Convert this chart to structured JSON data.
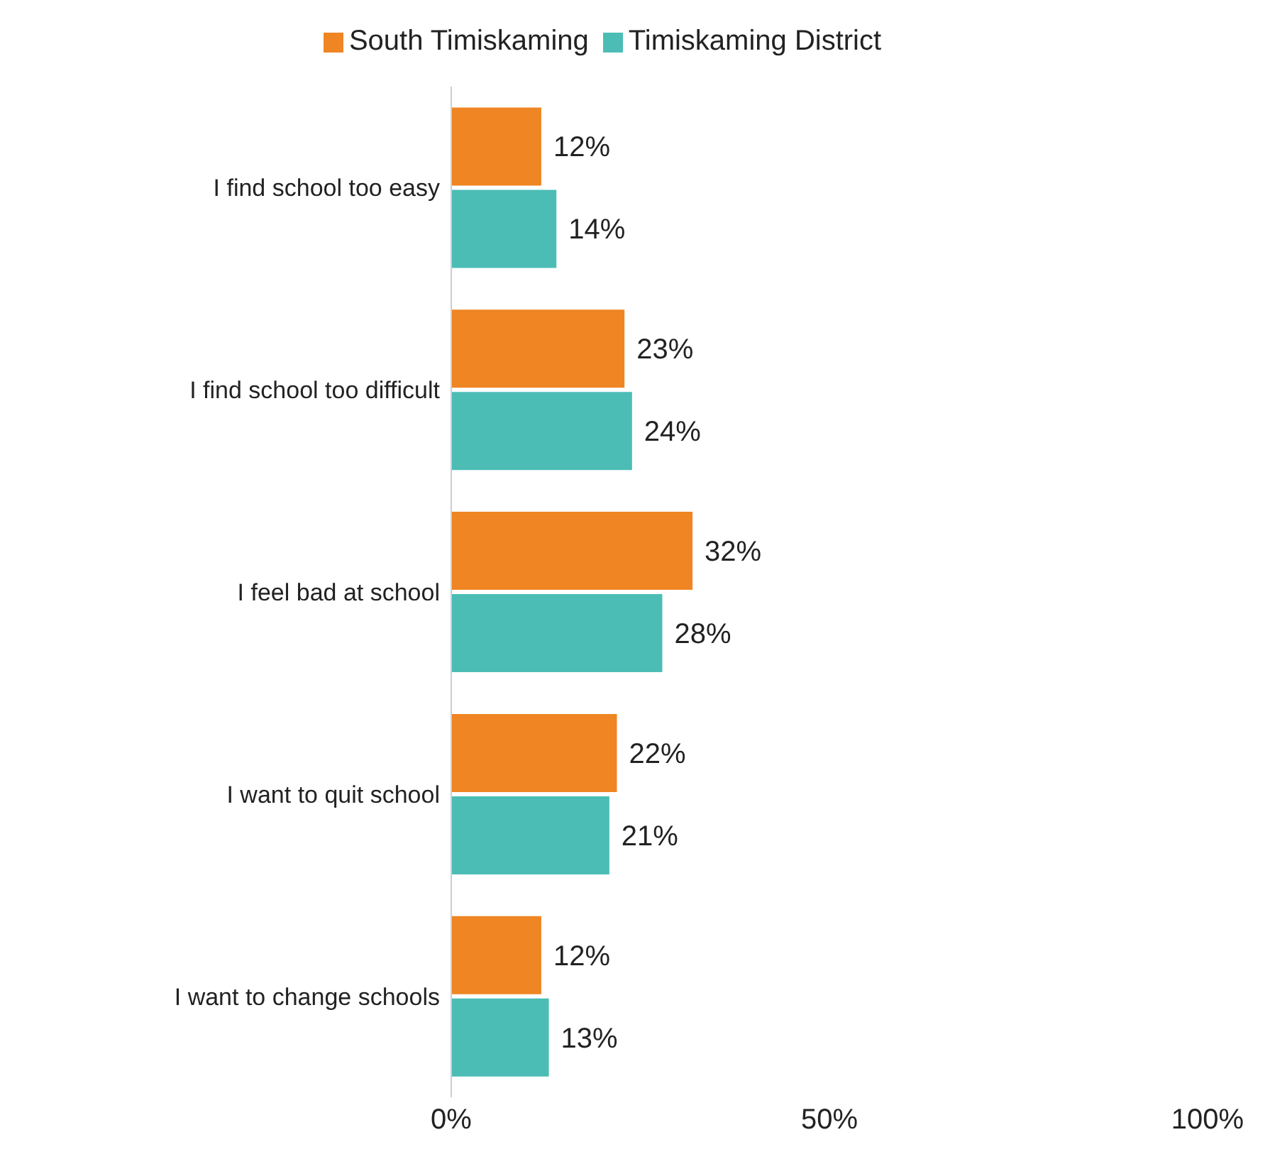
{
  "chart_data": {
    "type": "bar",
    "orientation": "horizontal",
    "categories": [
      "I find school too easy",
      "I find school too difficult",
      "I feel bad at school",
      "I want to quit school",
      "I want to change schools"
    ],
    "series": [
      {
        "name": "South Timiskaming",
        "color": "#ef8523",
        "values": [
          12,
          23,
          32,
          22,
          12
        ],
        "value_labels": [
          "12%",
          "23%",
          "32%",
          "22%",
          "12%"
        ]
      },
      {
        "name": "Timiskaming District",
        "color": "#4bbdb5",
        "values": [
          14,
          24,
          28,
          21,
          13
        ],
        "value_labels": [
          "14%",
          "24%",
          "28%",
          "21%",
          "13%"
        ]
      }
    ],
    "xlim": [
      0,
      100
    ],
    "xticks": [
      {
        "value": 0,
        "label": "0%"
      },
      {
        "value": 50,
        "label": "50%"
      },
      {
        "value": 100,
        "label": "100%"
      }
    ],
    "grid": false,
    "legend": "top"
  }
}
